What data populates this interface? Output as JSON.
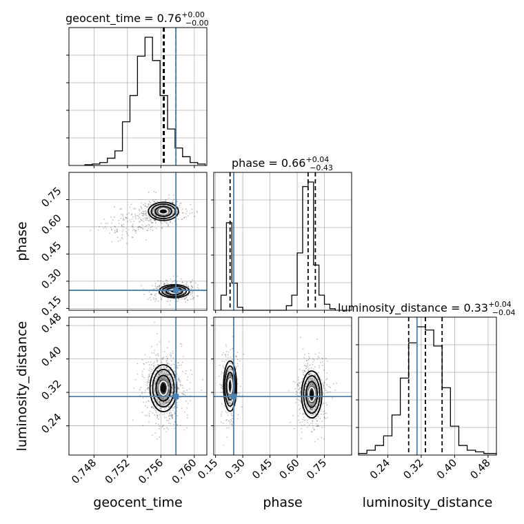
{
  "chart_data": {
    "type": "corner",
    "parameters": [
      {
        "name": "geocent_time",
        "axis_label": "geocent_time",
        "title": {
          "prefix": "geocent_time = ",
          "value": "0.76",
          "plus": "+0.00",
          "minus": "−0.00"
        },
        "range": [
          0.745,
          0.7615
        ],
        "ticks": [
          0.748,
          0.752,
          0.756,
          0.76
        ],
        "tick_labels": [
          "0.748",
          "0.752",
          "0.756",
          "0.760"
        ],
        "truth": 0.7578,
        "quantiles": [
          0.7563,
          0.7564,
          0.7578
        ],
        "histogram": {
          "edges": [
            0.7469,
            0.7478,
            0.7487,
            0.7496,
            0.7505,
            0.7514,
            0.7523,
            0.7532,
            0.7541,
            0.755,
            0.7559,
            0.7568,
            0.7577,
            0.7586,
            0.7595,
            0.7604,
            0.7613
          ],
          "counts": [
            0.005,
            0.01,
            0.02,
            0.05,
            0.1,
            0.3,
            0.48,
            0.75,
            0.88,
            0.72,
            0.48,
            0.25,
            0.12,
            0.06,
            0.02,
            0.01
          ]
        }
      },
      {
        "name": "phase",
        "axis_label": "phase",
        "title": {
          "prefix": "phase = ",
          "value": "0.66",
          "plus": "+0.04",
          "minus": "−0.43"
        },
        "range": [
          0.14,
          0.9
        ],
        "ticks": [
          0.15,
          0.3,
          0.45,
          0.6,
          0.75
        ],
        "tick_labels": [
          "0.15",
          "0.30",
          "0.45",
          "0.60",
          "0.75"
        ],
        "truth": 0.25,
        "quantiles": [
          0.23,
          0.66,
          0.7
        ],
        "histogram": {
          "edges": [
            0.18,
            0.21,
            0.24,
            0.27,
            0.3,
            0.54,
            0.57,
            0.6,
            0.63,
            0.66,
            0.69,
            0.72,
            0.75,
            0.78,
            0.81
          ],
          "counts": [
            0.1,
            0.58,
            0.18,
            0.02,
            0.0,
            0.03,
            0.1,
            0.38,
            0.82,
            0.85,
            0.3,
            0.1,
            0.04,
            0.01
          ]
        }
      },
      {
        "name": "luminosity_distance",
        "axis_label": "luminosity_distance",
        "title": {
          "prefix": "luminosity_distance = ",
          "value": "0.33",
          "plus": "+0.04",
          "minus": "−0.04"
        },
        "range": [
          0.17,
          0.5
        ],
        "ticks": [
          0.24,
          0.32,
          0.4,
          0.48
        ],
        "tick_labels": [
          "0.24",
          "0.32",
          "0.40",
          "0.48"
        ],
        "truth": 0.31,
        "quantiles": [
          0.29,
          0.33,
          0.37
        ],
        "histogram": {
          "edges": [
            0.17,
            0.19,
            0.21,
            0.23,
            0.25,
            0.27,
            0.29,
            0.31,
            0.33,
            0.35,
            0.37,
            0.39,
            0.41,
            0.43,
            0.45,
            0.47,
            0.49,
            0.5
          ],
          "counts": [
            0.01,
            0.03,
            0.06,
            0.12,
            0.25,
            0.48,
            0.7,
            0.8,
            0.78,
            0.68,
            0.42,
            0.18,
            0.06,
            0.03,
            0.02,
            0.01,
            0.01
          ]
        }
      }
    ],
    "truth_color": "#4682b4",
    "hist_color": "#000000",
    "grid": true
  }
}
